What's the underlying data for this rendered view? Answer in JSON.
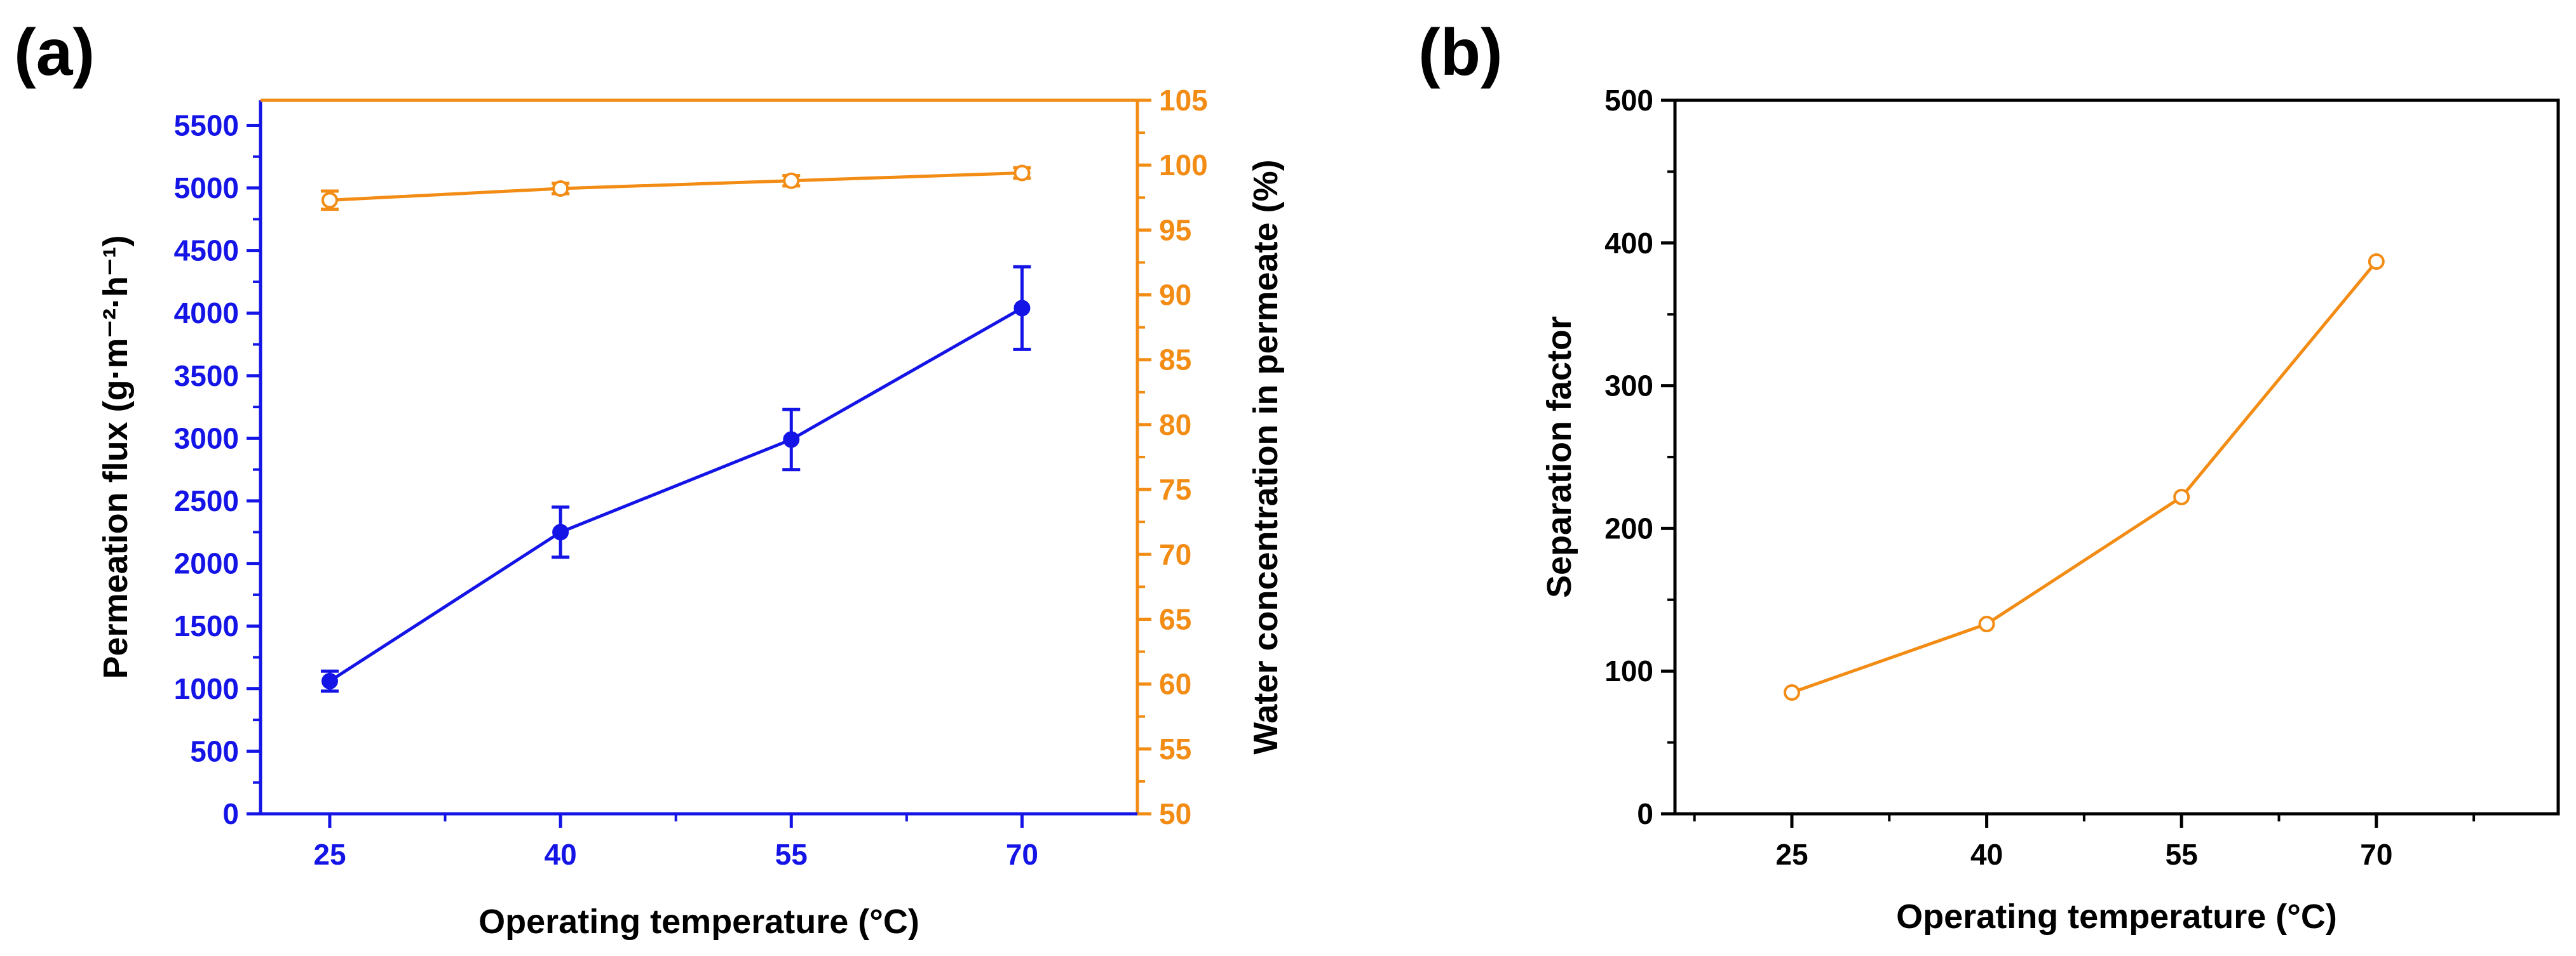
{
  "colors": {
    "flux": "#1414e6",
    "water": "#f28c14",
    "separation": "#f28c14",
    "axis_black": "#000000"
  },
  "chart_data": [
    {
      "panel": "(a)",
      "type": "line",
      "xlabel": "Operating temperature (°C)",
      "ylabel_left": "Permeation flux (g·m⁻²·h⁻¹)",
      "ylabel_right": "Water concentration in permeate (%)",
      "x": [
        25,
        40,
        55,
        70
      ],
      "x_ticks": [
        "25",
        "40",
        "55",
        "70"
      ],
      "xlim": [
        20.5,
        77.5
      ],
      "ylim_left": [
        0,
        5700
      ],
      "ylim_right": [
        50,
        105
      ],
      "y_ticks_left": [
        "0",
        "500",
        "1000",
        "1500",
        "2000",
        "2500",
        "3000",
        "3500",
        "4000",
        "4500",
        "5000",
        "5500"
      ],
      "y_ticks_right": [
        "50",
        "55",
        "60",
        "65",
        "70",
        "75",
        "80",
        "85",
        "90",
        "95",
        "100",
        "105"
      ],
      "series": [
        {
          "name": "Permeation flux",
          "axis": "left",
          "marker": "filled-circle",
          "values": [
            1060,
            2250,
            2990,
            4040
          ],
          "errors": [
            80,
            200,
            240,
            330
          ]
        },
        {
          "name": "Water concentration in permeate",
          "axis": "right",
          "marker": "open-circle",
          "values": [
            97.3,
            98.2,
            98.8,
            99.4
          ],
          "errors": [
            0.7,
            0.4,
            0.4,
            0.4
          ]
        }
      ]
    },
    {
      "panel": "(b)",
      "type": "line",
      "xlabel": "Operating temperature (°C)",
      "ylabel": "Separation factor",
      "x": [
        25,
        40,
        55,
        70
      ],
      "x_ticks": [
        "25",
        "40",
        "55",
        "70"
      ],
      "xlim": [
        16,
        84
      ],
      "ylim": [
        0,
        500
      ],
      "y_ticks": [
        "0",
        "100",
        "200",
        "300",
        "400",
        "500"
      ],
      "series": [
        {
          "name": "Separation factor",
          "marker": "open-circle",
          "values": [
            85,
            133,
            222,
            387
          ]
        }
      ]
    }
  ]
}
